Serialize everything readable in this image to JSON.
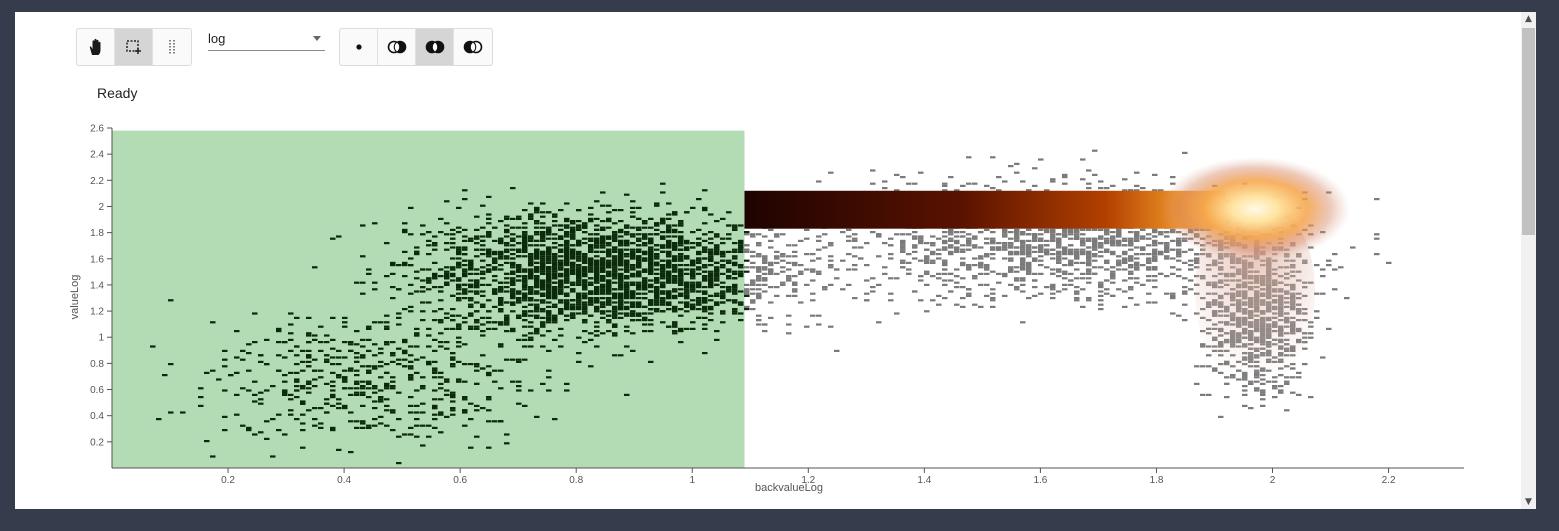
{
  "toolbar": {
    "tools": [
      {
        "name": "pan",
        "icon": "hand-icon",
        "active": false
      },
      {
        "name": "select-rect",
        "icon": "rect-select-icon",
        "active": true
      },
      {
        "name": "select-x",
        "icon": "vertical-select-icon",
        "active": false
      }
    ],
    "scale_select": {
      "value": "log"
    },
    "modes": [
      {
        "name": "replace",
        "icon": "dot-icon",
        "active": false
      },
      {
        "name": "or",
        "icon": "union-icon",
        "active": false
      },
      {
        "name": "and",
        "icon": "intersection-icon",
        "active": true
      },
      {
        "name": "subtract",
        "icon": "subtract-icon",
        "active": false
      }
    ]
  },
  "status": "Ready",
  "colors": {
    "selection": "#b4dcb4",
    "selected_bins": "#0b2a0b",
    "background_bins": "#7a7a7a",
    "heat_low": "#2a0500",
    "heat_mid": "#b23a00",
    "heat_high": "#fff6d8"
  },
  "chart_data": {
    "type": "heatmap",
    "title": "",
    "xlabel": "backvalueLog",
    "ylabel": "valueLog",
    "xlim": [
      0.0,
      2.33
    ],
    "ylim": [
      0.0,
      2.6
    ],
    "x_ticks": [
      "0.2",
      "0.4",
      "0.6",
      "0.8",
      "1",
      "1.2",
      "1.4",
      "1.6",
      "1.8",
      "2",
      "2.2"
    ],
    "y_ticks": [
      "0.2",
      "0.4",
      "0.6",
      "0.8",
      "1",
      "1.2",
      "1.4",
      "1.6",
      "1.8",
      "2",
      "2.2",
      "2.4",
      "2.6"
    ],
    "selection": {
      "x": [
        0.0,
        1.09
      ],
      "y": [
        0.0,
        2.58
      ]
    },
    "dense_band": {
      "x": [
        1.09,
        1.92
      ],
      "y": [
        1.83,
        2.12
      ]
    },
    "hot_spot": {
      "x": 1.97,
      "y": 1.98
    },
    "grid": false,
    "legend": "none"
  }
}
